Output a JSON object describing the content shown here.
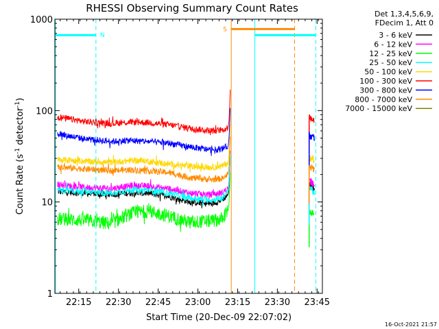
{
  "chart_data": {
    "type": "line",
    "title": "RHESSI Observing Summary Count Rates",
    "xlabel": "Start Time (20-Dec-09 22:07:02)",
    "ylabel_parts": [
      "Count Rate (s",
      "-1",
      " detector",
      "-1",
      ")"
    ],
    "y_scale": "log",
    "ylim": [
      1,
      1000
    ],
    "xlim_minutes": [
      -1,
      100
    ],
    "x_ticks": [
      {
        "label": "22:15",
        "m": 8
      },
      {
        "label": "22:30",
        "m": 23
      },
      {
        "label": "22:45",
        "m": 38
      },
      {
        "label": "23:00",
        "m": 53
      },
      {
        "label": "23:15",
        "m": 68
      },
      {
        "label": "23:30",
        "m": 83
      },
      {
        "label": "23:45",
        "m": 98
      }
    ],
    "y_ticks": [
      {
        "label": "1",
        "v": 1
      },
      {
        "label": "10",
        "v": 10
      },
      {
        "label": "100",
        "v": 100
      },
      {
        "label": "1000",
        "v": 1000
      }
    ],
    "legend_header": [
      "Det 1,3,4,5,6,9,",
      "FDecim 1, Att 0"
    ],
    "series": [
      {
        "name": "3 - 6 keV",
        "color": "#000000",
        "seg1": [
          [
            0,
            13
          ],
          [
            10,
            12.5
          ],
          [
            20,
            12
          ],
          [
            28,
            12.6
          ],
          [
            34,
            12.5
          ],
          [
            42,
            11.5
          ],
          [
            50,
            10
          ],
          [
            58,
            9.5
          ],
          [
            62,
            10.5
          ],
          [
            64.3,
            12
          ]
        ],
        "seg2": [
          [
            95,
            15
          ],
          [
            97,
            14
          ]
        ]
      },
      {
        "name": "6 - 12 keV",
        "color": "#ff00ff",
        "seg1": [
          [
            0,
            15.5
          ],
          [
            10,
            14.5
          ],
          [
            20,
            14
          ],
          [
            28,
            15
          ],
          [
            34,
            15
          ],
          [
            42,
            14
          ],
          [
            50,
            12.5
          ],
          [
            58,
            12
          ],
          [
            62,
            12.5
          ],
          [
            64.3,
            14
          ]
        ],
        "seg2": [
          [
            95,
            17
          ],
          [
            97,
            16
          ]
        ]
      },
      {
        "name": "12 - 25 keV",
        "color": "#00ff00",
        "seg1": [
          [
            0,
            6.5
          ],
          [
            10,
            6.3
          ],
          [
            20,
            5.8
          ],
          [
            28,
            7.5
          ],
          [
            34,
            8
          ],
          [
            42,
            7
          ],
          [
            50,
            6
          ],
          [
            58,
            6.2
          ],
          [
            62,
            6.5
          ],
          [
            64.3,
            8
          ]
        ],
        "seg2": [
          [
            95,
            8
          ],
          [
            97,
            7
          ]
        ]
      },
      {
        "name": "25 - 50 keV",
        "color": "#00ffff",
        "seg1": [
          [
            0,
            13.5
          ],
          [
            10,
            13
          ],
          [
            20,
            12.5
          ],
          [
            28,
            13.5
          ],
          [
            34,
            13.5
          ],
          [
            42,
            12.5
          ],
          [
            50,
            11
          ],
          [
            58,
            10.5
          ],
          [
            62,
            11
          ],
          [
            64.3,
            13
          ]
        ],
        "seg2": [
          [
            95,
            14
          ],
          [
            97,
            13
          ]
        ]
      },
      {
        "name": "50 - 100 keV",
        "color": "#ffd700",
        "seg1": [
          [
            0,
            29
          ],
          [
            10,
            28
          ],
          [
            20,
            27
          ],
          [
            28,
            28.5
          ],
          [
            34,
            28
          ],
          [
            42,
            26
          ],
          [
            50,
            24.5
          ],
          [
            58,
            24
          ],
          [
            62,
            24.5
          ],
          [
            64.3,
            27
          ]
        ],
        "seg2": [
          [
            95,
            30
          ],
          [
            97,
            29
          ]
        ]
      },
      {
        "name": "100 - 300 keV",
        "color": "#ff0000",
        "seg1": [
          [
            0,
            85
          ],
          [
            10,
            76
          ],
          [
            20,
            72
          ],
          [
            28,
            75
          ],
          [
            34,
            74
          ],
          [
            42,
            70
          ],
          [
            50,
            64
          ],
          [
            58,
            60
          ],
          [
            62,
            61
          ],
          [
            64.3,
            65
          ]
        ],
        "seg2": [
          [
            95,
            85
          ],
          [
            97,
            80
          ]
        ]
      },
      {
        "name": "300 - 800 keV",
        "color": "#0000ff",
        "seg1": [
          [
            0,
            56
          ],
          [
            10,
            49
          ],
          [
            20,
            46
          ],
          [
            28,
            47
          ],
          [
            34,
            46
          ],
          [
            42,
            44
          ],
          [
            50,
            40
          ],
          [
            58,
            37
          ],
          [
            62,
            38
          ],
          [
            64.3,
            41
          ]
        ],
        "seg2": [
          [
            95,
            54
          ],
          [
            97,
            50
          ]
        ]
      },
      {
        "name": "800 - 7000 keV",
        "color": "#ff8c00",
        "seg1": [
          [
            0,
            24
          ],
          [
            10,
            23
          ],
          [
            20,
            22
          ],
          [
            28,
            22.5
          ],
          [
            34,
            22
          ],
          [
            42,
            21
          ],
          [
            50,
            18.5
          ],
          [
            58,
            17.5
          ],
          [
            62,
            18
          ],
          [
            64.3,
            20
          ]
        ],
        "seg2": [
          [
            95,
            24
          ],
          [
            97,
            23
          ]
        ]
      },
      {
        "name": "7000 - 15000 keV",
        "color": "#808000",
        "seg1": [],
        "seg2": []
      }
    ],
    "flare_peak": {
      "m": 65.2
    },
    "flags": [
      {
        "label": "N",
        "color": "#00ffff",
        "bars": [
          [
            -1,
            14.5
          ],
          [
            74.5,
            97.5
          ]
        ],
        "y": 670
      },
      {
        "label": "S",
        "color": "#ff8c00",
        "bars": [
          [
            65.6,
            89.5
          ]
        ],
        "y": 780
      }
    ],
    "solid_lines": [
      {
        "m": -0.8,
        "color": "#00ffff"
      },
      {
        "m": 74.5,
        "color": "#00ffff"
      },
      {
        "m": 65.6,
        "color": "#ff8c00"
      }
    ],
    "dashed_lines": [
      {
        "m": 14.5,
        "color": "#00ffff"
      },
      {
        "m": 89.5,
        "color": "#ff8c00"
      },
      {
        "m": 97.5,
        "color": "#00ffff"
      }
    ],
    "timestamp": "16-Oct-2021 21:57"
  }
}
